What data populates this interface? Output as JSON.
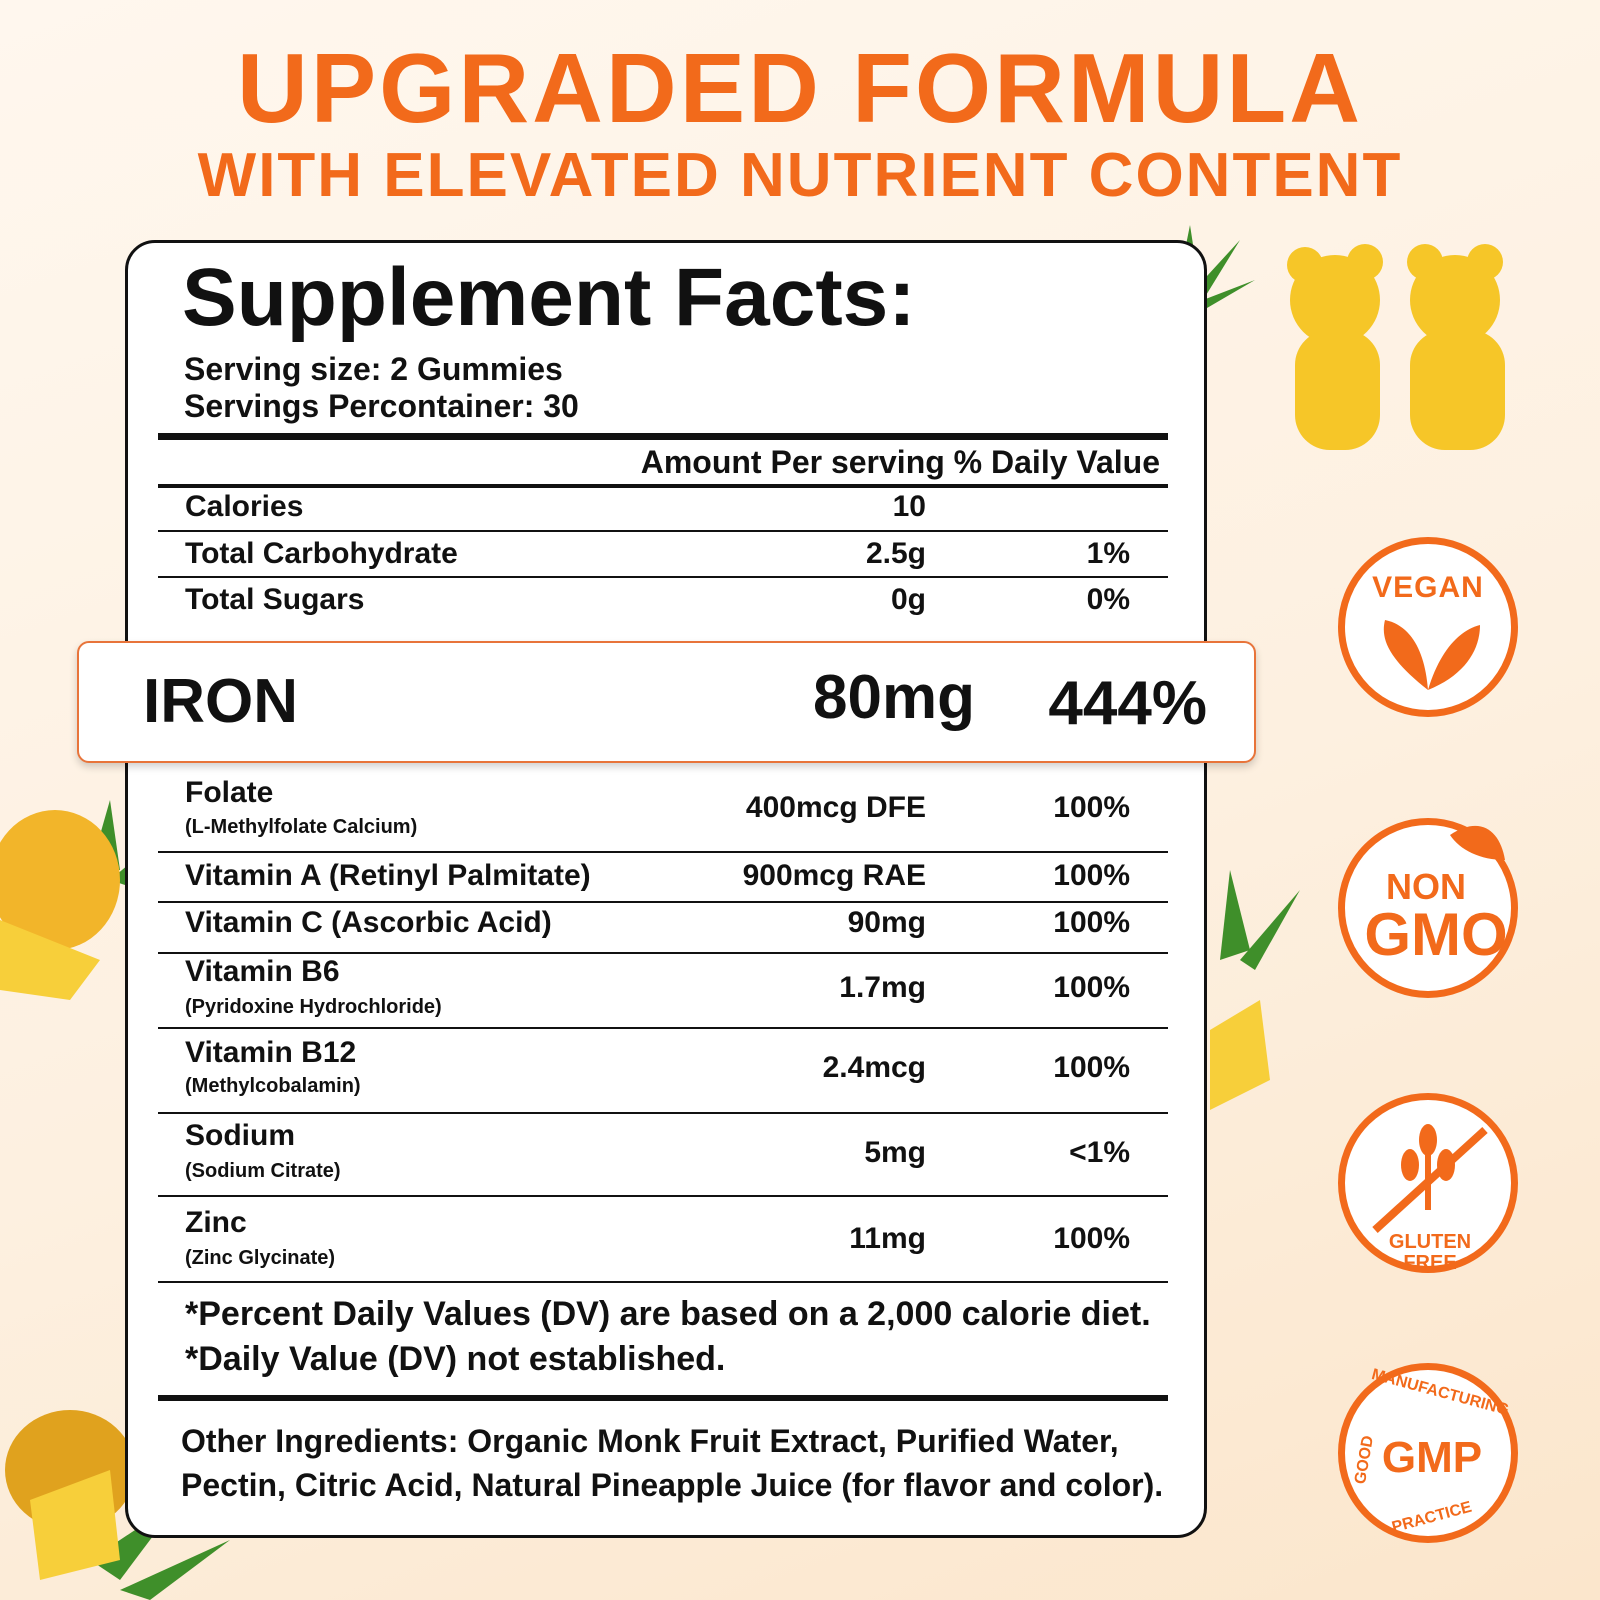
{
  "header": {
    "title": "UPGRADED FORMULA",
    "subtitle": "WITH ELEVATED NUTRIENT CONTENT"
  },
  "facts": {
    "title": "Supplement Facts:",
    "serving_size": "Serving size: 2 Gummies",
    "servings": "Servings Percontainer: 30",
    "column_header": "Amount Per serving % Daily Value",
    "rows": [
      {
        "name": "Calories",
        "amount": "10"
      },
      {
        "name": "Total Carbohydrate",
        "amount": "2.5g",
        "dv": "1%"
      },
      {
        "name": "Total Sugars",
        "amount": "0g",
        "dv": "0%"
      },
      {
        "name": "Folate",
        "sub": "(L-Methylfolate Calcium)",
        "amount": "400mcg DFE",
        "dv": "100%"
      },
      {
        "name": "Vitamin A (Retinyl Palmitate)",
        "amount": "900mcg RAE",
        "dv": "100%"
      },
      {
        "name": "Vitamin C (Ascorbic Acid)",
        "amount": "90mg",
        "dv": "100%"
      },
      {
        "name": "Vitamin B6",
        "sub": "(Pyridoxine Hydrochloride)",
        "amount": "1.7mg",
        "dv": "100%"
      },
      {
        "name": "Vitamin B12",
        "sub": "(Methylcobalamin)",
        "amount": "2.4mcg",
        "dv": "100%"
      },
      {
        "name": "Sodium",
        "sub": "(Sodium Citrate)",
        "amount": "5mg",
        "dv": "<1%"
      },
      {
        "name": "Zinc",
        "sub": "(Zinc Glycinate)",
        "amount": "11mg",
        "dv": "100%"
      }
    ],
    "highlight": {
      "name": "IRON",
      "amount": "80mg",
      "dv": "444%"
    },
    "footnotes": [
      "*Percent Daily Values (DV) are based on a 2,000 calorie diet.",
      "*Daily Value (DV) not established."
    ],
    "other_ingredients": [
      "Other Ingredients: Organic Monk Fruit Extract, Purified Water,",
      "Pectin, Citric Acid, Natural Pineapple Juice (for flavor and color)."
    ]
  },
  "badges": {
    "vegan": "VEGAN",
    "non": "NON",
    "gmo": "GMO",
    "gluten_free": [
      "GLUTEN",
      "FREE"
    ],
    "gmp": "GMP",
    "gmp_ring": [
      "GOOD",
      "MANUFACTURING",
      "PRACTICE"
    ]
  }
}
